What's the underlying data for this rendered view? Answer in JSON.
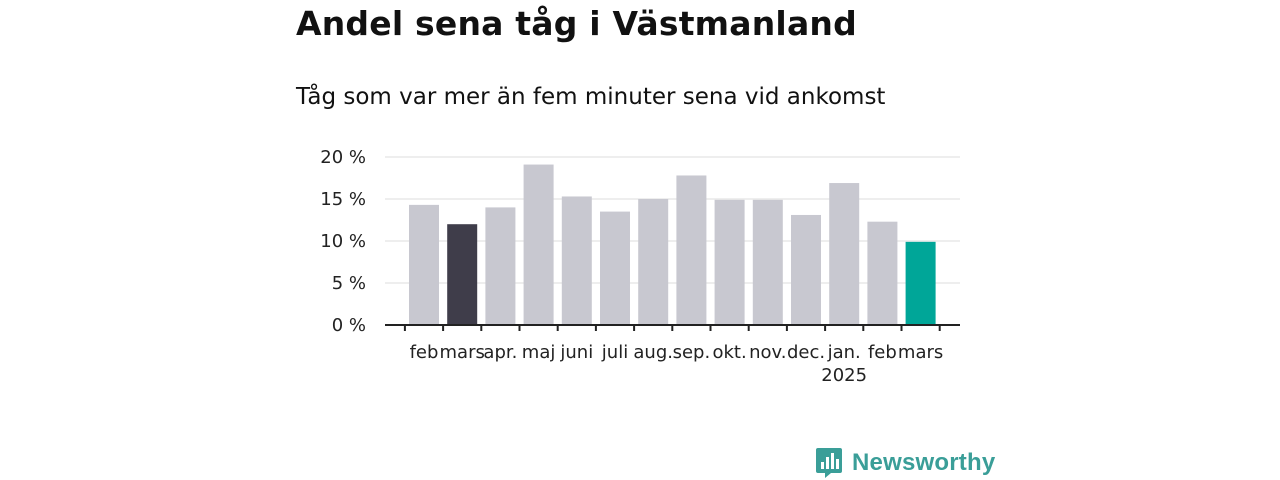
{
  "title": "Andel sena tåg i Västmanland",
  "subtitle": "Tåg som var mer än fem minuter sena vid ankomst",
  "brand": {
    "name": "Newsworthy",
    "icon": "newsworthy-logo-icon",
    "color": "#3a9e98"
  },
  "colors": {
    "default_bar": "#c8c8d0",
    "previous_year_bar": "#3f3d4a",
    "latest_bar": "#00a698",
    "axis": "#222222",
    "grid": "#dddddd"
  },
  "chart_data": {
    "type": "bar",
    "title": "Andel sena tåg i Västmanland",
    "subtitle": "Tåg som var mer än fem minuter sena vid ankomst",
    "xlabel": "",
    "ylabel": "",
    "ylim": [
      0,
      20
    ],
    "yticks": [
      0,
      5,
      10,
      15,
      20
    ],
    "ytick_labels": [
      "0 %",
      "5 %",
      "10 %",
      "15 %",
      "20 %"
    ],
    "grid": true,
    "categories": [
      "feb",
      "mars",
      "apr.",
      "maj",
      "juni",
      "juli",
      "aug.",
      "sep.",
      "okt.",
      "nov.",
      "dec.",
      "jan.",
      "feb",
      "mars"
    ],
    "year_label": {
      "category_index": 11,
      "text": "2025"
    },
    "values": [
      14.3,
      12.0,
      14.0,
      19.1,
      15.3,
      13.5,
      15.0,
      17.8,
      14.9,
      14.9,
      13.1,
      16.9,
      12.3,
      9.9
    ],
    "highlight": {
      "1": "previous_year_bar",
      "13": "latest_bar"
    }
  }
}
